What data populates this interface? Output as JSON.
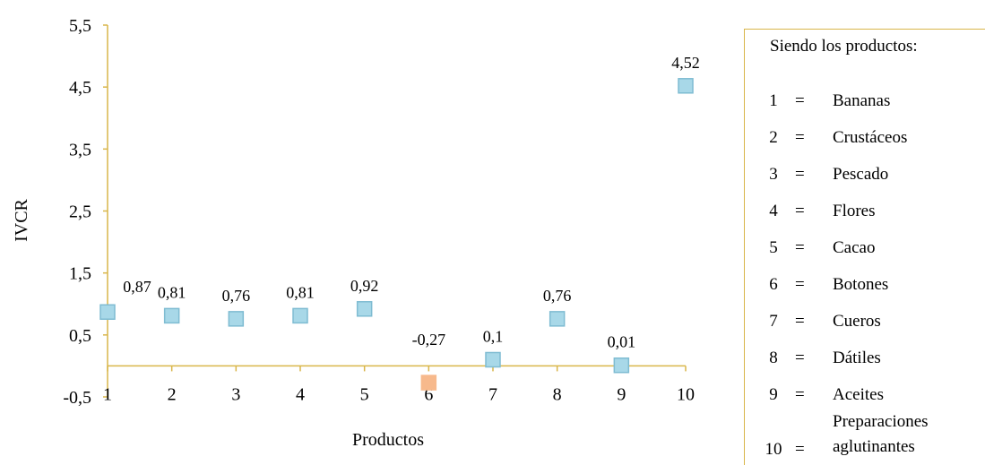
{
  "chart_data": {
    "type": "scatter",
    "xlabel": "Productos",
    "ylabel": "IVCR",
    "x": [
      1,
      2,
      3,
      4,
      5,
      6,
      7,
      8,
      9,
      10
    ],
    "x_tick_labels": [
      "1",
      "2",
      "3",
      "4",
      "5",
      "6",
      "7",
      "8",
      "9",
      "10"
    ],
    "y_tick_labels": [
      "-0,5",
      "0,5",
      "1,5",
      "2,5",
      "3,5",
      "4,5",
      "5,5"
    ],
    "ylim": [
      -0.5,
      5.5
    ],
    "xlim": [
      1,
      10
    ],
    "grid": false,
    "series": [
      {
        "values": [
          0.87,
          0.81,
          0.76,
          0.81,
          0.92,
          -0.27,
          0.1,
          0.76,
          0.01,
          4.52
        ],
        "data_labels": [
          "0,87",
          "0,81",
          "0,76",
          "0,81",
          "0,92",
          "-0,27",
          "0,1",
          "0,76",
          "0,01",
          "4,52"
        ]
      }
    ],
    "colors": {
      "positive_marker": "#a8d8e8",
      "positive_marker_border": "#7fbcd2",
      "negative_marker": "#f7b98c",
      "axis": "#d9b64a"
    },
    "legend_placement": "right"
  },
  "legend": {
    "title": "Siendo los productos:",
    "items": [
      {
        "num": "1",
        "eq": "=",
        "name": "Bananas"
      },
      {
        "num": "2",
        "eq": "=",
        "name": "Crustáceos"
      },
      {
        "num": "3",
        "eq": "=",
        "name": "Pescado"
      },
      {
        "num": "4",
        "eq": "=",
        "name": "Flores"
      },
      {
        "num": "5",
        "eq": "=",
        "name": "Cacao"
      },
      {
        "num": "6",
        "eq": "=",
        "name": "Botones"
      },
      {
        "num": "7",
        "eq": "=",
        "name": "Cueros"
      },
      {
        "num": "8",
        "eq": "=",
        "name": "Dátiles"
      },
      {
        "num": "9",
        "eq": "=",
        "name": "Aceites"
      },
      {
        "num": "10",
        "eq": "=",
        "name_line1": "Preparaciones",
        "name_line2": "aglutinantes"
      }
    ]
  }
}
